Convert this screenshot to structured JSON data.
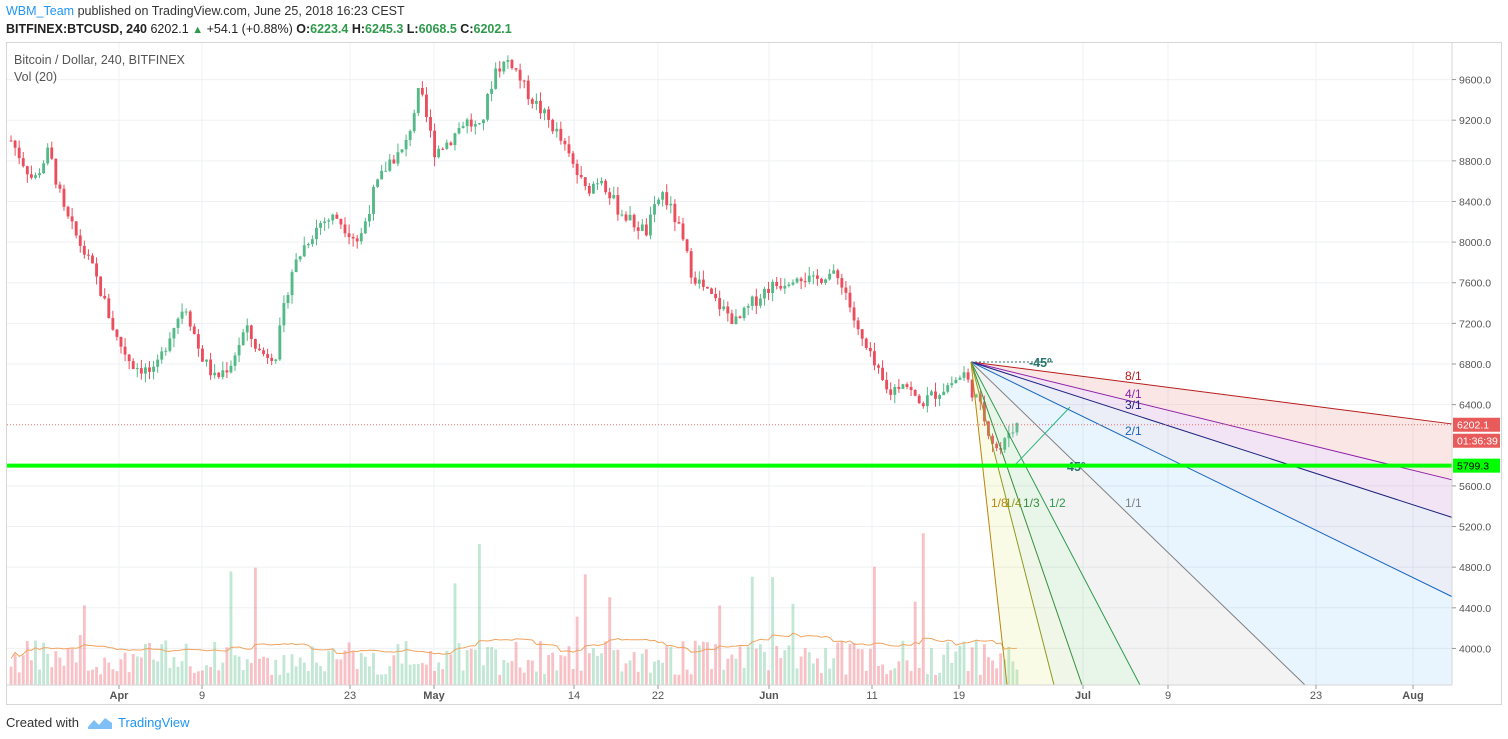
{
  "header": {
    "author": "WBM_Team",
    "published_text": "published on TradingView.com, June 25, 2018 16:23 CEST",
    "symbol": "BITFINEX:BTCUSD, 240",
    "last": "6202.1",
    "change": "+54.1 (+0.88%)",
    "o_label": "O:",
    "o_value": "6223.4",
    "h_label": "H:",
    "h_value": "6245.3",
    "l_label": "L:",
    "l_value": "6068.5",
    "c_label": "C:",
    "c_value": "6202.1"
  },
  "legend": {
    "title": "Bitcoin / Dollar, 240, BITFINEX",
    "indicator": "Vol (20)"
  },
  "footer": {
    "created_with": "Created with",
    "brand": "TradingView"
  },
  "colors": {
    "up": "#53b987",
    "down": "#eb4d5c",
    "support": "#00ff00",
    "price_label": "#e95b5b"
  },
  "chart_data": {
    "type": "candlestick",
    "y_ticks": [
      9600.0,
      9200.0,
      8800.0,
      8400.0,
      8000.0,
      7600.0,
      7200.0,
      6800.0,
      6400.0,
      5600.0,
      5200.0,
      4800.0,
      4400.0,
      4000.0
    ],
    "y_tick_labels": [
      "9600.0",
      "9200.0",
      "8800.0",
      "8400.0",
      "8000.0",
      "7600.0",
      "7200.0",
      "6800.0",
      "6400.0",
      "5600.0",
      "5200.0",
      "4800.0",
      "4400.0",
      "4000.0"
    ],
    "ylim": [
      3640,
      9960
    ],
    "x_ticks": [
      "Apr",
      "9",
      "23",
      "May",
      "14",
      "22",
      "Jun",
      "11",
      "19",
      "Jul",
      "9",
      "23",
      "Aug"
    ],
    "price_labels": {
      "last_price": "6202.1",
      "countdown": "01:36:39",
      "support": "5799.3"
    },
    "support_level": 5799.3,
    "last_price": 6202.1,
    "close_path": [
      [
        0,
        9000
      ],
      [
        3,
        8600
      ],
      [
        5,
        8900
      ],
      [
        7,
        8300
      ],
      [
        9,
        8000
      ],
      [
        11,
        7700
      ],
      [
        14,
        7050
      ],
      [
        16,
        6800
      ],
      [
        19,
        6700
      ],
      [
        21,
        7100
      ],
      [
        23,
        7400
      ],
      [
        25,
        6900
      ],
      [
        27,
        6650
      ],
      [
        29,
        6800
      ],
      [
        31,
        7150
      ],
      [
        33,
        6900
      ],
      [
        35,
        6900
      ],
      [
        37,
        7700
      ],
      [
        39,
        8000
      ],
      [
        41,
        8200
      ],
      [
        43,
        8250
      ],
      [
        46,
        8000
      ],
      [
        48,
        8500
      ],
      [
        50,
        8800
      ],
      [
        52,
        8900
      ],
      [
        54,
        9500
      ],
      [
        56,
        8900
      ],
      [
        58,
        9000
      ],
      [
        60,
        9200
      ],
      [
        62,
        9100
      ],
      [
        64,
        9700
      ],
      [
        66,
        9800
      ],
      [
        68,
        9500
      ],
      [
        70,
        9300
      ],
      [
        72,
        9100
      ],
      [
        74,
        8800
      ],
      [
        76,
        8500
      ],
      [
        78,
        8650
      ],
      [
        80,
        8350
      ],
      [
        82,
        8200
      ],
      [
        84,
        8100
      ],
      [
        86,
        8500
      ],
      [
        88,
        8200
      ],
      [
        90,
        7700
      ],
      [
        92,
        7500
      ],
      [
        94,
        7350
      ],
      [
        96,
        7200
      ],
      [
        98,
        7400
      ],
      [
        100,
        7550
      ],
      [
        102,
        7600
      ],
      [
        104,
        7700
      ],
      [
        106,
        7600
      ],
      [
        108,
        7700
      ],
      [
        110,
        7600
      ],
      [
        112,
        7100
      ],
      [
        114,
        6800
      ],
      [
        116,
        6500
      ],
      [
        118,
        6650
      ],
      [
        120,
        6400
      ],
      [
        122,
        6500
      ],
      [
        124,
        6600
      ],
      [
        126,
        6700
      ],
      [
        128,
        6400
      ],
      [
        130,
        6000
      ],
      [
        131,
        5950
      ],
      [
        132,
        6150
      ],
      [
        133,
        6202
      ]
    ],
    "fan": {
      "origin_label": "-45º",
      "lines": [
        {
          "label": "8/1",
          "color": "#b71c1c"
        },
        {
          "label": "4/1",
          "color": "#8e24aa"
        },
        {
          "label": "3/1",
          "color": "#1a237e"
        },
        {
          "label": "2/1",
          "color": "#1565c0"
        },
        {
          "label": "1/1",
          "color": "#808080"
        },
        {
          "label": "1/2",
          "color": "#2e9a4c"
        },
        {
          "label": "1/3",
          "color": "#388e3c"
        },
        {
          "label": "1/4",
          "color": "#8d9a1e"
        },
        {
          "label": "1/8",
          "color": "#b8860b"
        }
      ],
      "angle_label": "45º"
    }
  }
}
